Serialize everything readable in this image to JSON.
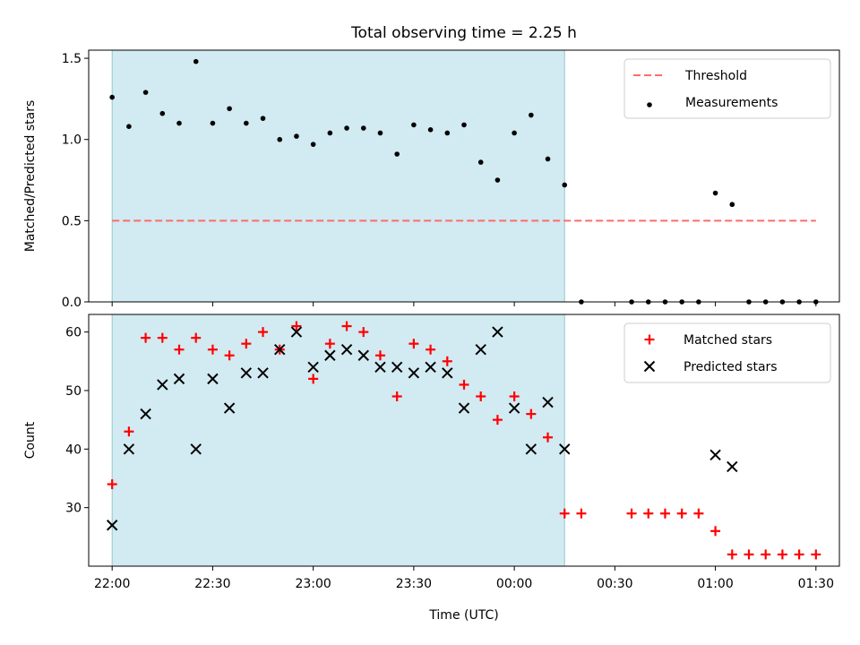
{
  "figure_title": "Total observing time = 2.25 h",
  "colors": {
    "shade": "#add8e6",
    "threshold": "#ff6b6b",
    "measurement": "#000000",
    "matched": "#ff0000",
    "predicted": "#000000"
  },
  "chart_data": [
    {
      "type": "scatter",
      "panel": "top",
      "title": "",
      "xlabel": "",
      "ylabel": "Matched/Predicted stars",
      "x_unit": "time HH:MM (UTC)",
      "xlim": [
        "21:53",
        "01:37"
      ],
      "ylim": [
        0,
        1.55
      ],
      "yticks": [
        "0.0",
        "0.5",
        "1.0",
        "1.5"
      ],
      "shaded_interval": [
        "22:00",
        "00:15"
      ],
      "legend": {
        "position": "top-right",
        "entries": [
          "Threshold",
          "Measurements"
        ]
      },
      "series": [
        {
          "name": "Threshold",
          "kind": "dashed-line",
          "x": [
            "22:00",
            "01:30"
          ],
          "y": [
            0.5,
            0.5
          ]
        },
        {
          "name": "Measurements",
          "kind": "dot",
          "x": [
            "22:00",
            "22:05",
            "22:10",
            "22:15",
            "22:20",
            "22:25",
            "22:30",
            "22:35",
            "22:40",
            "22:45",
            "22:50",
            "22:55",
            "23:00",
            "23:05",
            "23:10",
            "23:15",
            "23:20",
            "23:25",
            "23:30",
            "23:35",
            "23:40",
            "23:45",
            "23:50",
            "23:55",
            "00:00",
            "00:05",
            "00:10",
            "00:15",
            "00:20",
            "00:35",
            "00:40",
            "00:45",
            "00:50",
            "00:55",
            "01:00",
            "01:05",
            "01:10",
            "01:15",
            "01:20",
            "01:25",
            "01:30"
          ],
          "y": [
            1.26,
            1.08,
            1.29,
            1.16,
            1.1,
            1.48,
            1.1,
            1.19,
            1.1,
            1.13,
            1.0,
            1.02,
            0.97,
            1.04,
            1.07,
            1.07,
            1.04,
            0.91,
            1.09,
            1.06,
            1.04,
            1.09,
            0.86,
            0.75,
            1.04,
            1.15,
            0.88,
            0.72,
            0.0,
            0.0,
            0.0,
            0.0,
            0.0,
            0.0,
            0.67,
            0.6,
            0.0,
            0.0,
            0.0,
            0.0,
            0.0
          ]
        }
      ]
    },
    {
      "type": "scatter",
      "panel": "bottom",
      "title": "",
      "xlabel": "Time (UTC)",
      "ylabel": "Count",
      "x_unit": "time HH:MM (UTC)",
      "xlim": [
        "21:53",
        "01:37"
      ],
      "xticks": [
        "22:00",
        "22:30",
        "23:00",
        "23:30",
        "00:00",
        "00:30",
        "01:00",
        "01:30"
      ],
      "ylim": [
        20,
        63
      ],
      "yticks": [
        "30",
        "40",
        "50",
        "60"
      ],
      "shaded_interval": [
        "22:00",
        "00:15"
      ],
      "legend": {
        "position": "top-right",
        "entries": [
          "Matched stars",
          "Predicted stars"
        ]
      },
      "series": [
        {
          "name": "Matched stars",
          "kind": "plus",
          "x": [
            "22:00",
            "22:05",
            "22:10",
            "22:15",
            "22:20",
            "22:25",
            "22:30",
            "22:35",
            "22:40",
            "22:45",
            "22:50",
            "22:55",
            "23:00",
            "23:05",
            "23:10",
            "23:15",
            "23:20",
            "23:25",
            "23:30",
            "23:35",
            "23:40",
            "23:45",
            "23:50",
            "23:55",
            "00:00",
            "00:05",
            "00:10",
            "00:15",
            "00:20",
            "00:35",
            "00:40",
            "00:45",
            "00:50",
            "00:55",
            "01:00",
            "01:05",
            "01:10",
            "01:15",
            "01:20",
            "01:25",
            "01:30"
          ],
          "y": [
            34,
            43,
            59,
            59,
            57,
            59,
            57,
            56,
            58,
            60,
            57,
            61,
            52,
            58,
            61,
            60,
            56,
            49,
            58,
            57,
            55,
            51,
            49,
            45,
            49,
            46,
            42,
            29,
            29,
            29,
            29,
            29,
            29,
            29,
            26,
            22,
            22,
            22,
            22,
            22,
            22
          ]
        },
        {
          "name": "Predicted stars",
          "kind": "x",
          "x": [
            "22:00",
            "22:05",
            "22:10",
            "22:15",
            "22:20",
            "22:25",
            "22:30",
            "22:35",
            "22:40",
            "22:45",
            "22:50",
            "22:55",
            "23:00",
            "23:05",
            "23:10",
            "23:15",
            "23:20",
            "23:25",
            "23:30",
            "23:35",
            "23:40",
            "23:45",
            "23:50",
            "23:55",
            "00:00",
            "00:05",
            "00:10",
            "00:15",
            "01:00",
            "01:05"
          ],
          "y": [
            27,
            40,
            46,
            51,
            52,
            40,
            52,
            47,
            53,
            53,
            57,
            60,
            54,
            56,
            57,
            56,
            54,
            54,
            53,
            54,
            53,
            47,
            57,
            60,
            47,
            40,
            48,
            40,
            39,
            37
          ]
        }
      ]
    }
  ]
}
